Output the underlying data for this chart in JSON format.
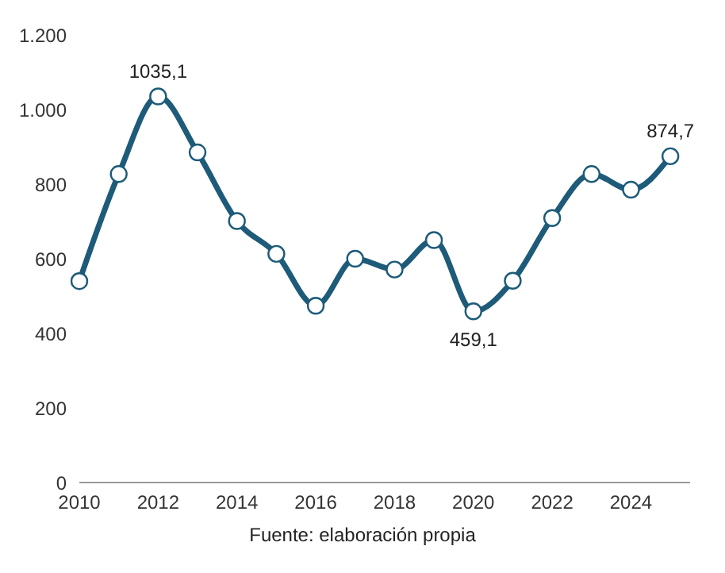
{
  "chart_data": {
    "type": "line",
    "x": [
      2010,
      2011,
      2012,
      2013,
      2014,
      2015,
      2016,
      2017,
      2018,
      2019,
      2020,
      2021,
      2022,
      2023,
      2024,
      2025
    ],
    "series": [
      {
        "color": "#1d5b79",
        "values": [
          540,
          827,
          1035.1,
          885,
          701,
          613,
          474,
          600,
          571,
          650,
          459.1,
          541,
          709,
          827,
          785,
          874.7
        ],
        "value_labels": [
          null,
          null,
          "1035,1",
          null,
          null,
          null,
          null,
          null,
          null,
          null,
          "459,1",
          null,
          null,
          null,
          null,
          "874,7"
        ]
      }
    ],
    "xlim": [
      2010,
      2025.5
    ],
    "xticks": [
      2010,
      2012,
      2014,
      2016,
      2018,
      2020,
      2022,
      2024
    ],
    "ylim": [
      0,
      1200
    ],
    "yticks": [
      0,
      200,
      400,
      600,
      800,
      {
        "value": 1000,
        "label": "1.000"
      },
      {
        "value": 1200,
        "label": "1.200"
      }
    ],
    "grid": false,
    "marker": "circle",
    "line_style": "solid",
    "annotations": [
      "Fuente: elaboración propia"
    ]
  }
}
